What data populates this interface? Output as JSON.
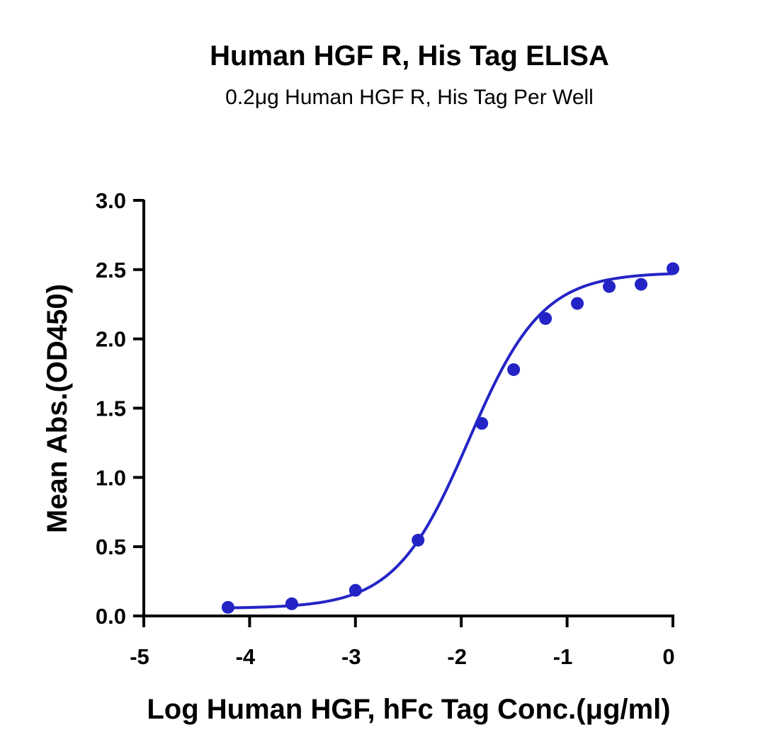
{
  "chart_data": {
    "type": "scatter",
    "title": "Human HGF R, His Tag ELISA",
    "subtitle": "0.2μg Human HGF R, His Tag Per Well",
    "xlabel": "Log  Human HGF, hFc Tag Conc.(μg/ml)",
    "ylabel": "Mean Abs.(OD450)",
    "xlim": [
      -5,
      0
    ],
    "ylim": [
      0,
      3
    ],
    "xticks": [
      -5,
      -4,
      -3,
      -2,
      -1,
      0
    ],
    "yticks": [
      0,
      0.5,
      1,
      1.5,
      2,
      2.5,
      3
    ],
    "xtick_labels": [
      "-5",
      "-4",
      "-3",
      "-2",
      "-1",
      "0"
    ],
    "ytick_labels": [
      "0.0",
      "0.5",
      "1.0",
      "1.5",
      "2.0",
      "2.5",
      "3.0"
    ],
    "grid": false,
    "series": [
      {
        "color": "#2424c6",
        "x": [
          -4.204,
          -3.602,
          -3.0,
          -2.408,
          -1.806,
          -1.505,
          -1.204,
          -0.903,
          -0.602,
          -0.301,
          0.0
        ],
        "y": [
          0.062,
          0.088,
          0.185,
          0.547,
          1.39,
          1.778,
          2.147,
          2.256,
          2.378,
          2.394,
          2.507
        ]
      }
    ],
    "fit_curve": {
      "model": "4PL",
      "color": "#2424c6",
      "bottom": 0.055,
      "top": 2.48,
      "log_ec50": -1.93,
      "hill_slope": 1.25,
      "x_range": [
        -4.204,
        0.0
      ]
    }
  }
}
